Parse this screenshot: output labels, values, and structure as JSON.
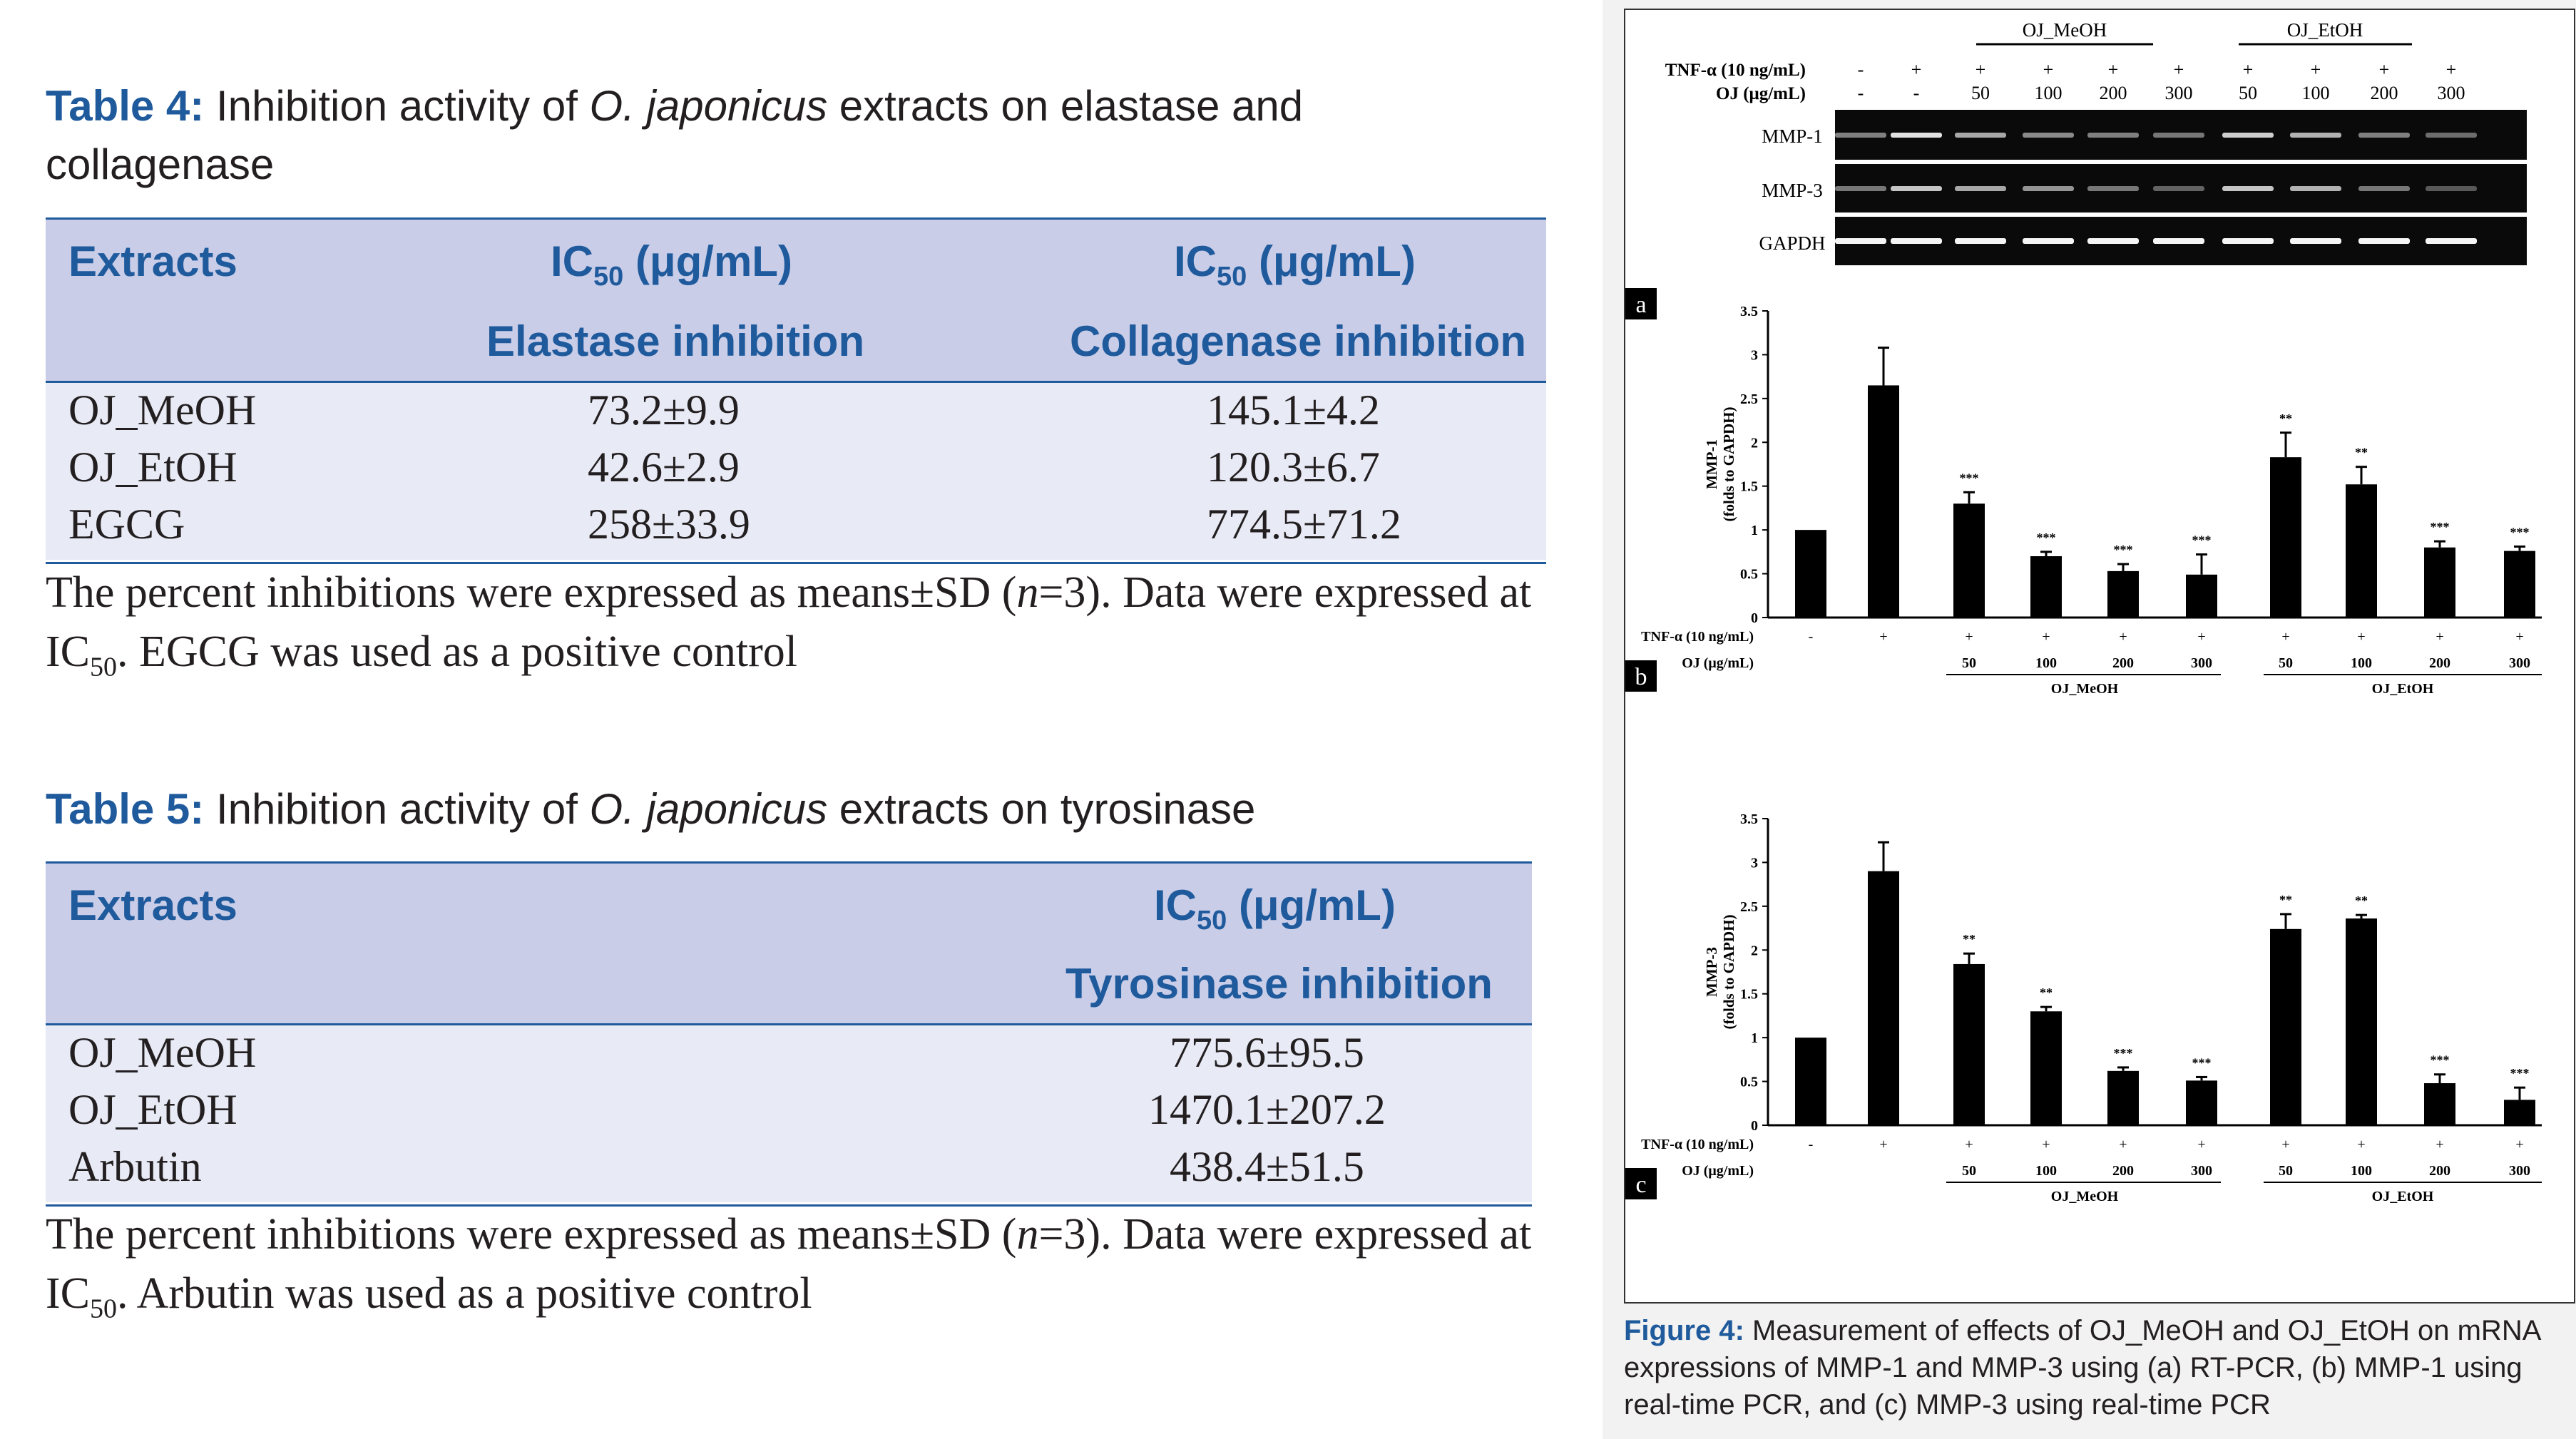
{
  "table4": {
    "label": "Table 4:",
    "caption_pre": " Inhibition activity of ",
    "caption_species": "O. japonicus",
    "caption_post": " extracts on elastase and collagenase",
    "col_extracts": "Extracts",
    "ic_prefix": "IC",
    "ic_sub": "50",
    "ic_unit": " (μg/mL)",
    "col2_sub": "Elastase inhibition",
    "col3_sub": "Collagenase inhibition",
    "rows": [
      {
        "name": "OJ_MeOH",
        "v1": "73.2±9.9",
        "v2": "145.1±4.2"
      },
      {
        "name": "OJ_EtOH",
        "v1": "42.6±2.9",
        "v2": "120.3±6.7"
      },
      {
        "name": "EGCG",
        "v1": "258±33.9",
        "v2": "774.5±71.2"
      }
    ],
    "note_1": "The percent inhibitions were expressed as means±SD (",
    "note_n": "n",
    "note_2": "=3). Data were expressed at IC",
    "note_sub": "50",
    "note_3": ". EGCG was used as a positive control"
  },
  "table5": {
    "label": "Table 5:",
    "caption_pre": " Inhibition activity of ",
    "caption_species": "O. japonicus",
    "caption_post": " extracts on tyrosinase",
    "col_extracts": "Extracts",
    "ic_prefix": "IC",
    "ic_sub": "50",
    "ic_unit": " (μg/mL)",
    "col2_sub": "Tyrosinase inhibition",
    "rows": [
      {
        "name": "OJ_MeOH",
        "v1": "775.6±95.5"
      },
      {
        "name": "OJ_EtOH",
        "v1": "1470.1±207.2"
      },
      {
        "name": "Arbutin",
        "v1": "438.4±51.5"
      }
    ],
    "note_1": "The percent inhibitions were expressed as means±SD (",
    "note_n": "n",
    "note_2": "=3). Data were expressed at IC",
    "note_sub": "50",
    "note_3": ". Arbutin was used as a positive control"
  },
  "figure4": {
    "label": "Figure 4:",
    "caption": " Measurement of effects of OJ_MeOH and OJ_EtOH on mRNA expressions of MMP-1 and MMP-3 using (a) RT-PCR, (b) MMP-1 using real-time PCR, and (c) MMP-3 using real-time PCR",
    "group_meoh": "OJ_MeOH",
    "group_etoh": "OJ_EtOH",
    "tnf_label": "TNF-α (10 ng/mL)",
    "oj_label": "OJ (μg/mL)",
    "tnf_label_short": "TNF-α  (10 ng/mL)",
    "oj_label_short": "OJ (μg/mL)",
    "tnf_marks": [
      "-",
      "+",
      "+",
      "+",
      "+",
      "+",
      "+",
      "+",
      "+",
      "+"
    ],
    "oj_marks": [
      "-",
      "-",
      "50",
      "100",
      "200",
      "300",
      "50",
      "100",
      "200",
      "300"
    ],
    "doses": [
      "50",
      "100",
      "200",
      "300",
      "50",
      "100",
      "200",
      "300"
    ],
    "gel_rows": [
      "MMP-1",
      "MMP-3",
      "GAPDH"
    ],
    "panel_letters": [
      "a",
      "b",
      "c"
    ]
  },
  "chart_data": [
    {
      "type": "bar",
      "panel": "b",
      "ylabel": "MMP-1 (folds to GAPDH)",
      "ylim": [
        0,
        3.5
      ],
      "yticks": [
        "0",
        "0.5",
        "1",
        "1.5",
        "2",
        "2.5",
        "3",
        "3.5"
      ],
      "categories": [
        "-/-",
        "+/-",
        "+/50 MeOH",
        "+/100 MeOH",
        "+/200 MeOH",
        "+/300 MeOH",
        "+/50 EtOH",
        "+/100 EtOH",
        "+/200 EtOH",
        "+/300 EtOH"
      ],
      "values": [
        1.0,
        2.65,
        1.3,
        0.7,
        0.53,
        0.49,
        1.83,
        1.52,
        0.8,
        0.76
      ],
      "errors": [
        0,
        0.43,
        0.13,
        0.05,
        0.08,
        0.23,
        0.28,
        0.2,
        0.07,
        0.05
      ],
      "significance": [
        "",
        "",
        "***",
        "***",
        "***",
        "***",
        "**",
        "**",
        "***",
        "***"
      ],
      "grid": false
    },
    {
      "type": "bar",
      "panel": "c",
      "ylabel": "MMP-3 (folds to GAPDH)",
      "ylim": [
        0,
        3.5
      ],
      "yticks": [
        "0",
        "0.5",
        "1",
        "1.5",
        "2",
        "2.5",
        "3",
        "3.5"
      ],
      "categories": [
        "-/-",
        "+/-",
        "+/50 MeOH",
        "+/100 MeOH",
        "+/200 MeOH",
        "+/300 MeOH",
        "+/50 EtOH",
        "+/100 EtOH",
        "+/200 EtOH",
        "+/300 EtOH"
      ],
      "values": [
        1.0,
        2.9,
        1.84,
        1.3,
        0.62,
        0.51,
        2.24,
        2.36,
        0.48,
        0.29
      ],
      "errors": [
        0,
        0.33,
        0.12,
        0.05,
        0.04,
        0.04,
        0.17,
        0.04,
        0.1,
        0.14
      ],
      "significance": [
        "",
        "",
        "**",
        "**",
        "***",
        "***",
        "**",
        "**",
        "***",
        "***"
      ],
      "grid": false
    }
  ],
  "gel": {
    "intensity_mmp1": [
      0.35,
      0.85,
      0.55,
      0.4,
      0.35,
      0.3,
      0.75,
      0.6,
      0.35,
      0.25
    ],
    "intensity_mmp3": [
      0.3,
      0.7,
      0.55,
      0.45,
      0.3,
      0.2,
      0.7,
      0.6,
      0.3,
      0.15
    ],
    "intensity_gapdh": [
      0.95,
      0.95,
      0.95,
      0.95,
      0.95,
      0.95,
      0.95,
      0.95,
      0.95,
      0.95
    ]
  }
}
